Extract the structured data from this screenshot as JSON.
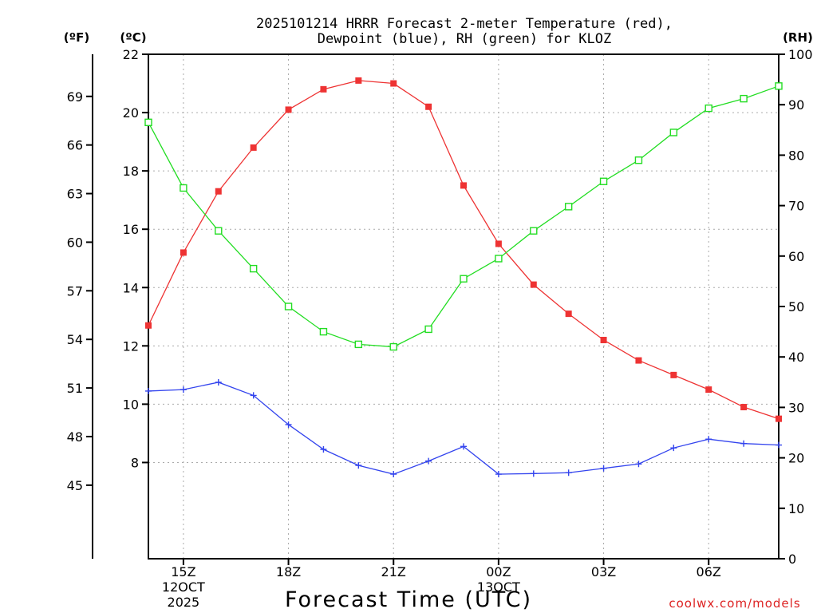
{
  "chart_data": {
    "type": "line",
    "title_line1": "2025101214 HRRR Forecast 2-meter Temperature (red),",
    "title_line2": "Dewpoint (blue), RH (green) for KLOZ",
    "xlabel": "Forecast Time (UTC)",
    "watermark": "coolwx.com/models",
    "left_outer_axis_label": "(ºF)",
    "left_axis_label": "(ºC)",
    "right_axis_label": "(RH)",
    "x_hours": [
      14,
      15,
      16,
      17,
      18,
      19,
      20,
      21,
      22,
      23,
      24,
      25,
      26,
      27,
      28,
      29,
      30,
      31,
      32
    ],
    "x_ticks": [
      {
        "hour": 15,
        "label": "15Z"
      },
      {
        "hour": 18,
        "label": "18Z"
      },
      {
        "hour": 21,
        "label": "21Z"
      },
      {
        "hour": 24,
        "label": "00Z"
      },
      {
        "hour": 27,
        "label": "03Z"
      },
      {
        "hour": 30,
        "label": "06Z"
      }
    ],
    "date_labels": [
      {
        "hour": 15,
        "line1": "12OCT",
        "line2": "2025"
      },
      {
        "hour": 24,
        "line1": "13OCT",
        "line2": ""
      }
    ],
    "celsius_axis": {
      "min": 4.7,
      "max": 22,
      "ticks": [
        8,
        10,
        12,
        14,
        16,
        18,
        20,
        22
      ]
    },
    "fahrenheit_ticks": [
      45,
      48,
      51,
      54,
      57,
      60,
      63,
      66,
      69
    ],
    "rh_axis": {
      "min": 0,
      "max": 100,
      "ticks": [
        0,
        10,
        20,
        30,
        40,
        50,
        60,
        70,
        80,
        90,
        100
      ]
    },
    "series": [
      {
        "name": "Temperature",
        "unit": "C",
        "color": "#ee3333",
        "marker": "filled-square",
        "values": [
          12.7,
          15.2,
          17.3,
          18.8,
          20.1,
          20.8,
          21.1,
          21.0,
          20.2,
          17.5,
          15.5,
          14.1,
          13.1,
          12.2,
          11.5,
          11.0,
          10.5,
          9.9,
          9.5
        ]
      },
      {
        "name": "Dewpoint",
        "unit": "C",
        "color": "#3344ee",
        "marker": "plus",
        "values": [
          10.45,
          10.5,
          10.75,
          10.3,
          9.3,
          8.45,
          7.9,
          7.6,
          8.05,
          8.55,
          7.6,
          7.62,
          7.65,
          7.8,
          7.95,
          8.5,
          8.8,
          8.65,
          8.6
        ]
      },
      {
        "name": "Relative Humidity",
        "unit": "%",
        "color": "#22dd22",
        "marker": "open-square",
        "values": [
          86.5,
          73.5,
          65.0,
          57.5,
          50.0,
          45.0,
          42.5,
          42.0,
          45.5,
          55.5,
          59.5,
          65.0,
          69.8,
          74.8,
          79.0,
          84.5,
          89.3,
          91.2,
          93.7
        ]
      }
    ]
  }
}
